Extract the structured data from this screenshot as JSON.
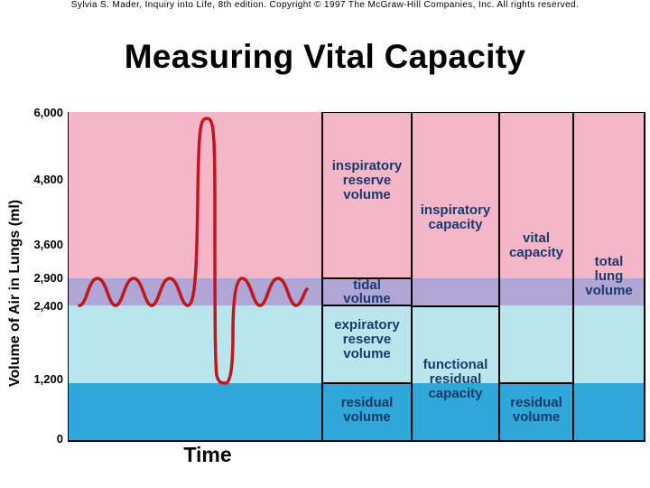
{
  "credit": "Sylvia S. Mader, Inquiry into Life, 8th edition. Copyright © 1997 The McGraw-Hill Companies, Inc. All rights reserved.",
  "title": "Measuring Vital Capacity",
  "y_axis_label": "Volume of Air in Lungs (ml)",
  "x_axis_label": "Time",
  "y_ticks": [
    "6,000",
    "4,800",
    "3,600",
    "2,900",
    "2,400",
    "1,200",
    "0"
  ],
  "colors": {
    "inspiratory_zone": "#f4b6c8",
    "tidal_zone": "#b0a6d6",
    "expiratory_zone": "#b8e6ec",
    "residual_zone": "#2fa7d8",
    "trace": "#c0161c",
    "label_text": "#1a3a6a"
  },
  "labels": {
    "inspiratory_reserve_volume": [
      "inspiratory",
      "reserve",
      "volume"
    ],
    "tidal_volume": [
      "tidal",
      "volume"
    ],
    "expiratory_reserve_volume": [
      "expiratory",
      "reserve",
      "volume"
    ],
    "residual_volume_1": [
      "residual",
      "volume"
    ],
    "inspiratory_capacity": [
      "inspiratory",
      "capacity"
    ],
    "functional_residual_capacity": [
      "functional",
      "residual",
      "capacity"
    ],
    "vital_capacity": [
      "vital",
      "capacity"
    ],
    "residual_volume_2": [
      "residual",
      "volume"
    ],
    "total_lung_volume": [
      "total",
      "lung",
      "volume"
    ]
  }
}
